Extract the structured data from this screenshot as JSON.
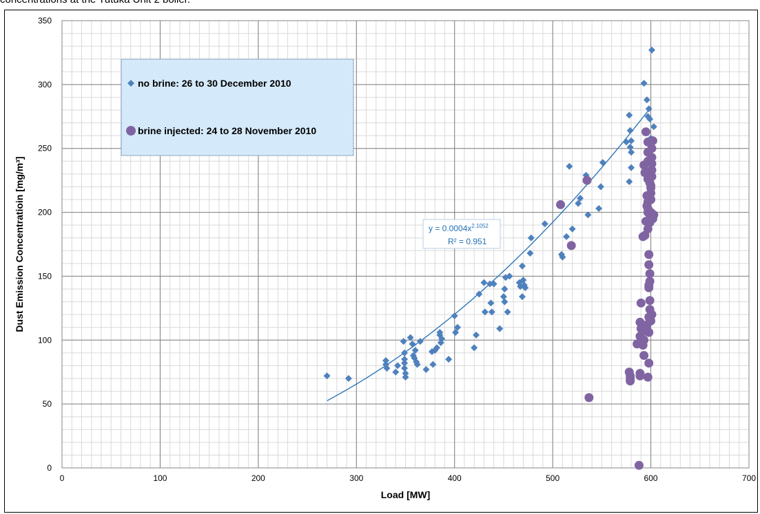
{
  "caption": "concentrations at the Tutuka Unit 2 boiler.",
  "chart_data": {
    "type": "scatter",
    "title": "",
    "xlabel": "Load [MW]",
    "ylabel": "Dust Emission Concentratioin [mg/m³]",
    "xlim": [
      0,
      700
    ],
    "ylim": [
      0,
      350
    ],
    "xticks": [
      0,
      100,
      200,
      300,
      400,
      500,
      600,
      700
    ],
    "yticks": [
      0,
      50,
      100,
      150,
      200,
      250,
      300,
      350
    ],
    "grid": true,
    "legend_position": "top-left",
    "series": [
      {
        "name": "no brine: 26 to 30 December 2010",
        "marker": "diamond",
        "color": "#4f81bd",
        "points": [
          [
            270,
            72
          ],
          [
            292,
            70
          ],
          [
            330,
            84
          ],
          [
            330,
            81
          ],
          [
            331,
            78
          ],
          [
            340,
            75
          ],
          [
            342,
            80
          ],
          [
            348,
            99
          ],
          [
            349,
            90
          ],
          [
            349,
            85
          ],
          [
            349,
            82
          ],
          [
            349,
            78
          ],
          [
            350,
            74
          ],
          [
            350,
            71
          ],
          [
            355,
            102
          ],
          [
            357,
            97
          ],
          [
            358,
            88
          ],
          [
            359,
            86
          ],
          [
            360,
            92
          ],
          [
            361,
            83
          ],
          [
            362,
            81
          ],
          [
            365,
            99
          ],
          [
            371,
            77
          ],
          [
            377,
            91
          ],
          [
            378,
            81
          ],
          [
            380,
            92
          ],
          [
            382,
            94
          ],
          [
            385,
            106
          ],
          [
            385,
            104
          ],
          [
            386,
            98
          ],
          [
            387,
            101
          ],
          [
            394,
            85
          ],
          [
            400,
            119
          ],
          [
            401,
            106
          ],
          [
            403,
            110
          ],
          [
            420,
            94
          ],
          [
            422,
            104
          ],
          [
            425,
            136
          ],
          [
            430,
            145
          ],
          [
            431,
            122
          ],
          [
            436,
            144
          ],
          [
            437,
            129
          ],
          [
            438,
            122
          ],
          [
            440,
            144
          ],
          [
            446,
            109
          ],
          [
            450,
            134
          ],
          [
            451,
            140
          ],
          [
            451,
            130
          ],
          [
            452,
            149
          ],
          [
            454,
            122
          ],
          [
            456,
            150
          ],
          [
            466,
            145
          ],
          [
            467,
            142
          ],
          [
            469,
            134
          ],
          [
            470,
            147
          ],
          [
            471,
            143
          ],
          [
            472,
            141
          ],
          [
            469,
            158
          ],
          [
            477,
            168
          ],
          [
            478,
            180
          ],
          [
            492,
            191
          ],
          [
            509,
            167
          ],
          [
            510,
            165
          ],
          [
            514,
            181
          ],
          [
            517,
            236
          ],
          [
            520,
            187
          ],
          [
            526,
            207
          ],
          [
            528,
            211
          ],
          [
            534,
            229
          ],
          [
            536,
            198
          ],
          [
            547,
            203
          ],
          [
            549,
            220
          ],
          [
            551,
            239
          ],
          [
            575,
            255
          ],
          [
            578,
            276
          ],
          [
            579,
            264
          ],
          [
            580,
            256
          ],
          [
            579,
            251
          ],
          [
            580,
            247
          ],
          [
            580,
            235
          ],
          [
            578,
            224
          ],
          [
            593,
            301
          ],
          [
            596,
            288
          ],
          [
            597,
            255
          ],
          [
            598,
            281
          ],
          [
            597,
            275
          ],
          [
            599,
            273
          ],
          [
            603,
            267
          ],
          [
            600,
            258
          ],
          [
            601,
            327
          ],
          [
            598,
            245
          ]
        ]
      },
      {
        "name": "brine injected: 24 to 28 November 2010",
        "marker": "circle",
        "color": "#8064a2",
        "points": [
          [
            508,
            206
          ],
          [
            519,
            174
          ],
          [
            535,
            225
          ],
          [
            537,
            55
          ],
          [
            578,
            75
          ],
          [
            579,
            72
          ],
          [
            579,
            70
          ],
          [
            579,
            68
          ],
          [
            589,
            74
          ],
          [
            589,
            72
          ],
          [
            588,
            2
          ],
          [
            586,
            97
          ],
          [
            589,
            103
          ],
          [
            590,
            109
          ],
          [
            589,
            114
          ],
          [
            590,
            129
          ],
          [
            592,
            96
          ],
          [
            593,
            100
          ],
          [
            594,
            107
          ],
          [
            595,
            110
          ],
          [
            596,
            112
          ],
          [
            593,
            88
          ],
          [
            592,
            181
          ],
          [
            594,
            182
          ],
          [
            595,
            193
          ],
          [
            593,
            237
          ],
          [
            594,
            231
          ],
          [
            595,
            263
          ],
          [
            596,
            213
          ],
          [
            596,
            205
          ],
          [
            597,
            71
          ],
          [
            598,
            82
          ],
          [
            597,
            187
          ],
          [
            597,
            200
          ],
          [
            597,
            208
          ],
          [
            597,
            226
          ],
          [
            597,
            240
          ],
          [
            597,
            247
          ],
          [
            597,
            255
          ],
          [
            598,
            118
          ],
          [
            599,
            124
          ],
          [
            599,
            131
          ],
          [
            598,
            143
          ],
          [
            599,
            146
          ],
          [
            599,
            152
          ],
          [
            598,
            159
          ],
          [
            598,
            167
          ],
          [
            599,
            192
          ],
          [
            599,
            198
          ],
          [
            600,
            210
          ],
          [
            600,
            215
          ],
          [
            600,
            219
          ],
          [
            600,
            221
          ],
          [
            601,
            228
          ],
          [
            601,
            233
          ],
          [
            601,
            238
          ],
          [
            601,
            243
          ],
          [
            601,
            250
          ],
          [
            602,
            256
          ],
          [
            602,
            195
          ],
          [
            603,
            198
          ],
          [
            598,
            106
          ],
          [
            600,
            115
          ],
          [
            597,
            203
          ],
          [
            599,
            223
          ],
          [
            600,
            200
          ],
          [
            596,
            232
          ],
          [
            601,
            120
          ],
          [
            598,
            141
          ]
        ]
      }
    ],
    "trendline": {
      "equation": "y = 0.0004x",
      "exponent": "2.1052",
      "r2_label": "R² = 0.951",
      "coef": 0.0004,
      "power": 2.1052,
      "x_range": [
        270,
        601
      ],
      "color": "#1f6fb5"
    }
  }
}
